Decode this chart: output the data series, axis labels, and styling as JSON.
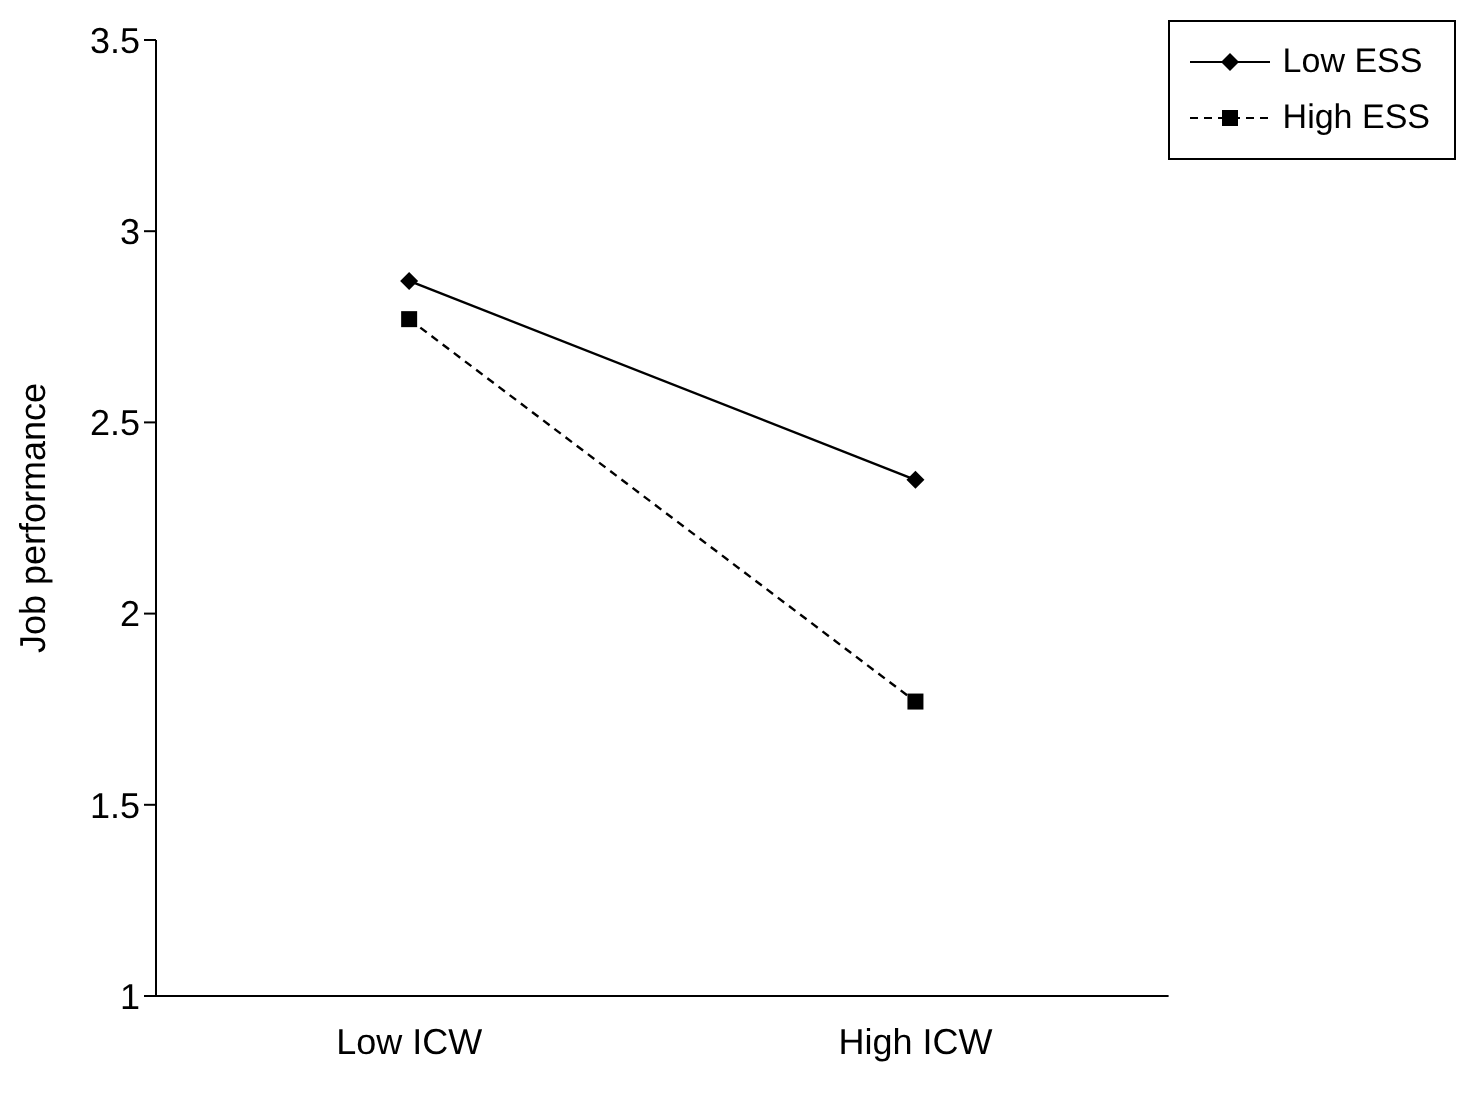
{
  "chart_data": {
    "type": "line",
    "ylabel": "Job performance",
    "categories": [
      "Low ICW",
      "High ICW"
    ],
    "ylim": [
      1,
      3.5
    ],
    "yticks": [
      1,
      1.5,
      2,
      2.5,
      3,
      3.5
    ],
    "grid": false,
    "legend": "top right",
    "series": [
      {
        "name": "Low ESS",
        "color": "#000000",
        "values": [
          2.87,
          2.35
        ],
        "marker": "diamond",
        "line_style": "solid"
      },
      {
        "name": "High ESS",
        "color": "#000000",
        "values": [
          2.77,
          1.77
        ],
        "marker": "square",
        "line_style": "dashed"
      }
    ]
  }
}
